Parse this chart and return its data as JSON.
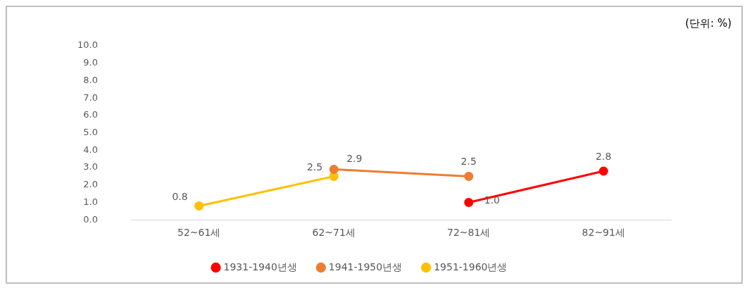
{
  "chart_data": {
    "type": "line",
    "annotations": [
      "(단위: %)"
    ],
    "categories": [
      "52~61세",
      "62~71세",
      "72~81세",
      "82~91세"
    ],
    "series": [
      {
        "name": "1931-1940년생",
        "color": "#ff0000",
        "values": [
          null,
          null,
          1.0,
          2.8
        ],
        "value_labels": [
          null,
          null,
          "1.0",
          "2.8"
        ]
      },
      {
        "name": "1941-1950년생",
        "color": "#ed7d31",
        "values": [
          null,
          2.9,
          2.5,
          null
        ],
        "value_labels": [
          null,
          "2.9",
          "2.5",
          null
        ]
      },
      {
        "name": "1951-1960년생",
        "color": "#ffc000",
        "values": [
          0.8,
          2.5,
          null,
          null
        ],
        "value_labels": [
          "0.8",
          "2.5",
          null,
          null
        ]
      }
    ],
    "ylim": [
      0,
      10
    ],
    "yticks": [
      {
        "value": 0,
        "label": "0.0"
      },
      {
        "value": 1,
        "label": "1.0"
      },
      {
        "value": 2,
        "label": "2.0"
      },
      {
        "value": 3,
        "label": "3.0"
      },
      {
        "value": 4,
        "label": "4.0"
      },
      {
        "value": 5,
        "label": "5.0"
      },
      {
        "value": 6,
        "label": "6.0"
      },
      {
        "value": 7,
        "label": "7.0"
      },
      {
        "value": 8,
        "label": "8.0"
      },
      {
        "value": 9,
        "label": "9.0"
      },
      {
        "value": 10,
        "label": "10.0"
      }
    ],
    "grid": false,
    "legend": "bottom",
    "marker": "circle",
    "line_style": "solid"
  }
}
